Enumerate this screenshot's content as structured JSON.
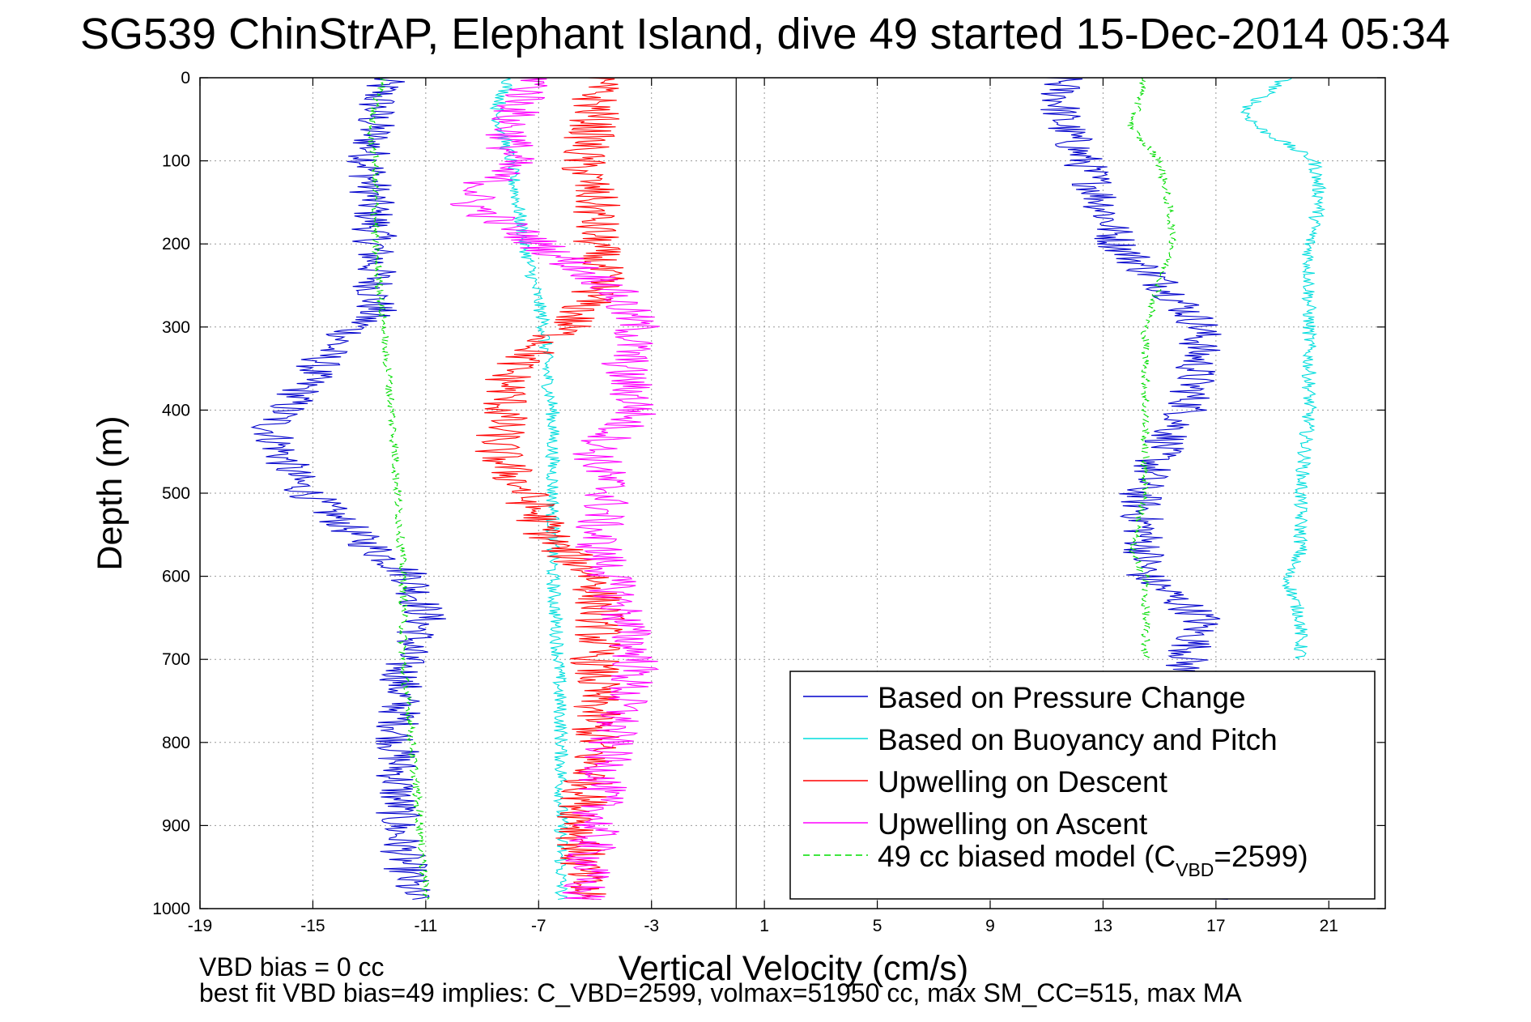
{
  "chart_data": {
    "type": "line",
    "title": "SG539 ChinStrAP, Elephant Island, dive 49 started 15-Dec-2014 05:34",
    "xlabel": "Vertical Velocity (cm/s)",
    "ylabel": "Depth (m)",
    "xlim": [
      -19,
      23
    ],
    "ylim": [
      0,
      1000
    ],
    "y_reversed": true,
    "xticks": [
      -19,
      -15,
      -11,
      -7,
      -3,
      1,
      5,
      9,
      13,
      17,
      21
    ],
    "yticks": [
      0,
      100,
      200,
      300,
      400,
      500,
      600,
      700,
      800,
      900,
      1000
    ],
    "grid": true,
    "grid_style": "dotted",
    "legend_position": "bottom-right",
    "zero_line_x": 0,
    "series": [
      {
        "name": "Based on Pressure Change",
        "color": "#0000cc",
        "style": "solid",
        "depth": [
          0,
          40,
          100,
          200,
          280,
          330,
          380,
          420,
          460,
          490,
          550,
          600,
          650,
          700,
          800,
          900,
          990
        ],
        "velocity": [
          -12.5,
          -12.8,
          -13.0,
          -12.8,
          -12.8,
          -14.5,
          -15.5,
          -16.5,
          -16.0,
          -15.5,
          -13.5,
          -11.5,
          -11.0,
          -11.8,
          -12.0,
          -12.0,
          -11.5
        ],
        "ascent_depth": [
          990,
          900,
          800,
          700,
          650,
          600,
          570,
          500,
          450,
          400,
          350,
          300,
          260,
          230,
          200,
          150,
          100,
          50,
          0
        ],
        "ascent_velocity": [
          17.0,
          15.0,
          14.5,
          16.0,
          16.5,
          14.5,
          14.5,
          14.3,
          15.0,
          16.0,
          16.3,
          16.5,
          15.5,
          14.5,
          13.5,
          13.0,
          12.3,
          11.5,
          11.5
        ]
      },
      {
        "name": "Based on Buoyancy and Pitch",
        "color": "#00dddd",
        "style": "solid",
        "depth": [
          0,
          40,
          100,
          200,
          300,
          360,
          400,
          500,
          600,
          700,
          800,
          900,
          990
        ],
        "velocity": [
          -8.0,
          -8.5,
          -8.0,
          -7.5,
          -6.8,
          -6.7,
          -6.5,
          -6.5,
          -6.5,
          -6.3,
          -6.2,
          -6.2,
          -6.2
        ],
        "ascent_depth": [
          700,
          650,
          600,
          570,
          500,
          400,
          300,
          200,
          150,
          100,
          60,
          40,
          0
        ],
        "ascent_velocity": [
          20.0,
          20.0,
          19.5,
          20.0,
          20.0,
          20.3,
          20.3,
          20.3,
          20.7,
          20.5,
          18.5,
          18.0,
          19.5
        ]
      },
      {
        "name": "Upwelling on Descent",
        "color": "#ff0000",
        "style": "solid",
        "depth": [
          0,
          50,
          100,
          150,
          200,
          250,
          300,
          350,
          400,
          450,
          500,
          560,
          600,
          650,
          700,
          800,
          900,
          990
        ],
        "velocity": [
          -5.0,
          -5.0,
          -5.5,
          -5.0,
          -5.0,
          -4.8,
          -6.0,
          -8.0,
          -8.2,
          -8.5,
          -7.5,
          -6.5,
          -5.0,
          -4.8,
          -5.0,
          -5.0,
          -5.5,
          -5.5
        ]
      },
      {
        "name": "Upwelling on Ascent",
        "color": "#ff00ff",
        "style": "solid",
        "depth": [
          0,
          50,
          100,
          150,
          200,
          250,
          300,
          350,
          400,
          450,
          500,
          550,
          600,
          650,
          700,
          800,
          900,
          990
        ],
        "velocity": [
          -7.0,
          -8.0,
          -8.0,
          -9.5,
          -7.0,
          -4.5,
          -3.5,
          -4.0,
          -3.5,
          -5.0,
          -4.5,
          -5.0,
          -4.5,
          -4.0,
          -3.5,
          -4.5,
          -5.0,
          -5.5
        ]
      },
      {
        "name": "49 cc biased model (C_VBD=2599)",
        "color": "#00dd00",
        "style": "dashed",
        "depth": [
          0,
          60,
          100,
          200,
          300,
          400,
          500,
          600,
          700,
          800,
          900,
          990
        ],
        "velocity": [
          -12.5,
          -13.0,
          -12.8,
          -12.8,
          -12.5,
          -12.2,
          -12.0,
          -11.8,
          -11.8,
          -11.5,
          -11.2,
          -11.0
        ],
        "ascent_depth": [
          700,
          600,
          570,
          500,
          400,
          300,
          200,
          150,
          100,
          60,
          0
        ],
        "ascent_velocity": [
          14.5,
          14.5,
          14.0,
          14.5,
          14.5,
          14.5,
          15.5,
          15.3,
          15.0,
          14.0,
          14.5
        ]
      }
    ],
    "annotations": [
      "VBD bias = 0 cc",
      "best fit VBD bias=49 implies: C_VBD=2599, volmax=51950 cc, max SM_CC=515, max MA"
    ]
  },
  "legend": {
    "entries": [
      {
        "name": "Based on Pressure Change"
      },
      {
        "name": "Based on Buoyancy and Pitch"
      },
      {
        "name": "Upwelling on Descent"
      },
      {
        "name": "Upwelling on Ascent"
      },
      {
        "prefix": "49 cc biased model (C",
        "sub": "VBD",
        "suffix": "=2599)"
      }
    ]
  }
}
